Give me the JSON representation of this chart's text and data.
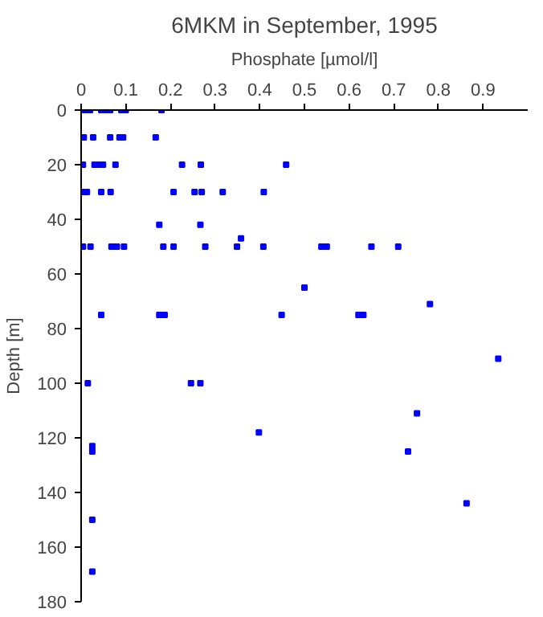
{
  "chart_data": {
    "type": "scatter",
    "title": "6MKM in September, 1995",
    "xlabel": "Phosphate [µmol/l]",
    "ylabel": "Depth [m]",
    "x": [
      0.005,
      0.01,
      0.02,
      0.045,
      0.055,
      0.065,
      0.09,
      0.1,
      0.18,
      0.006,
      0.027,
      0.065,
      0.086,
      0.094,
      0.167,
      0.004,
      0.03,
      0.039,
      0.049,
      0.077,
      0.226,
      0.268,
      0.459,
      0.004,
      0.013,
      0.045,
      0.066,
      0.207,
      0.254,
      0.27,
      0.317,
      0.409,
      0.175,
      0.267,
      0.004,
      0.021,
      0.068,
      0.08,
      0.096,
      0.184,
      0.207,
      0.278,
      0.349,
      0.408,
      0.538,
      0.55,
      0.65,
      0.71,
      0.358,
      0.5,
      0.045,
      0.175,
      0.187,
      0.449,
      0.621,
      0.632,
      0.781,
      0.934,
      0.015,
      0.246,
      0.267,
      0.752,
      0.398,
      0.025,
      0.025,
      0.732,
      0.863,
      0.025,
      0.025
    ],
    "series": [
      {
        "color": "#0000ff",
        "values": [
          0,
          0,
          0,
          0,
          0,
          0,
          0,
          0,
          0,
          10,
          10,
          10,
          10,
          10,
          10,
          20,
          20,
          20,
          20,
          20,
          20,
          20,
          20,
          30,
          30,
          30,
          30,
          30,
          30,
          30,
          30,
          30,
          42,
          42,
          50,
          50,
          50,
          50,
          50,
          50,
          50,
          50,
          50,
          50,
          50,
          50,
          50,
          50,
          47,
          65,
          75,
          75,
          75,
          75,
          75,
          75,
          71,
          91,
          100,
          100,
          100,
          111,
          118,
          123,
          125,
          125,
          144,
          150,
          169
        ]
      }
    ],
    "xlim": [
      0,
      1
    ],
    "xticks": [
      0,
      0.1,
      0.2,
      0.3,
      0.4,
      0.5,
      0.6,
      0.7,
      0.8,
      0.9
    ],
    "ylim": [
      180,
      0
    ],
    "yticks": [
      0,
      20,
      40,
      60,
      80,
      100,
      120,
      140,
      160,
      180
    ],
    "marker": "square"
  }
}
